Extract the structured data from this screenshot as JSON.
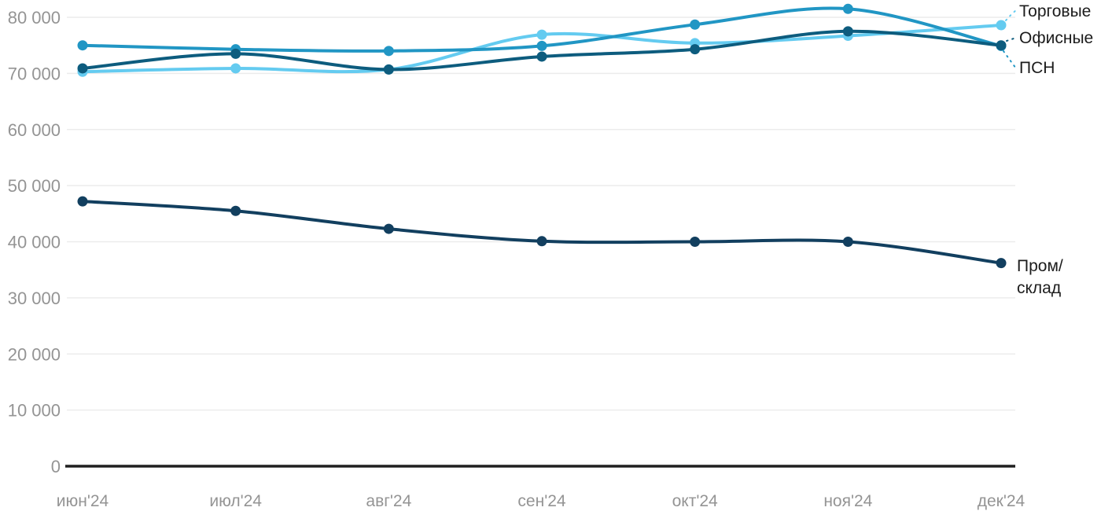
{
  "chart_data": {
    "type": "line",
    "title": "",
    "xlabel": "",
    "ylabel": "",
    "categories": [
      "июн'24",
      "июл'24",
      "авг'24",
      "сен'24",
      "окт'24",
      "ноя'24",
      "дек'24"
    ],
    "yticks": [
      {
        "value": 0,
        "label": "0"
      },
      {
        "value": 10000,
        "label": "10 000"
      },
      {
        "value": 20000,
        "label": "20 000"
      },
      {
        "value": 30000,
        "label": "30 000"
      },
      {
        "value": 40000,
        "label": "40 000"
      },
      {
        "value": 50000,
        "label": "50 000"
      },
      {
        "value": 60000,
        "label": "60 000"
      },
      {
        "value": 70000,
        "label": "70 000"
      },
      {
        "value": 80000,
        "label": "80 000"
      }
    ],
    "ylim": [
      0,
      83500
    ],
    "grid": true,
    "legend_position": "end-of-line-labels",
    "series": [
      {
        "name": "Торговые",
        "slug": "torgovye",
        "color": "#64cbf0",
        "values": [
          70300,
          70900,
          70700,
          76900,
          75400,
          76700,
          78600
        ]
      },
      {
        "name": "Офисные",
        "slug": "ofisnye",
        "color": "#0d5c7e",
        "values": [
          70900,
          73500,
          70700,
          73000,
          74300,
          77500,
          75000
        ]
      },
      {
        "name": "ПСН",
        "slug": "psn",
        "color": "#2196c4",
        "values": [
          75000,
          74300,
          74000,
          74900,
          78700,
          81500,
          74900
        ]
      },
      {
        "name": "Пром/склад",
        "slug": "prom-sklad",
        "color": "#123f5f",
        "values": [
          47200,
          45500,
          42300,
          40100,
          40000,
          40000,
          36200
        ],
        "label_lines": [
          "Пром/",
          "склад"
        ]
      }
    ],
    "colors": {
      "grid_line": "#ececec",
      "axis_line": "#1f1f1f",
      "tick_text": "#949494",
      "label_text": "#1c1c1c"
    }
  }
}
